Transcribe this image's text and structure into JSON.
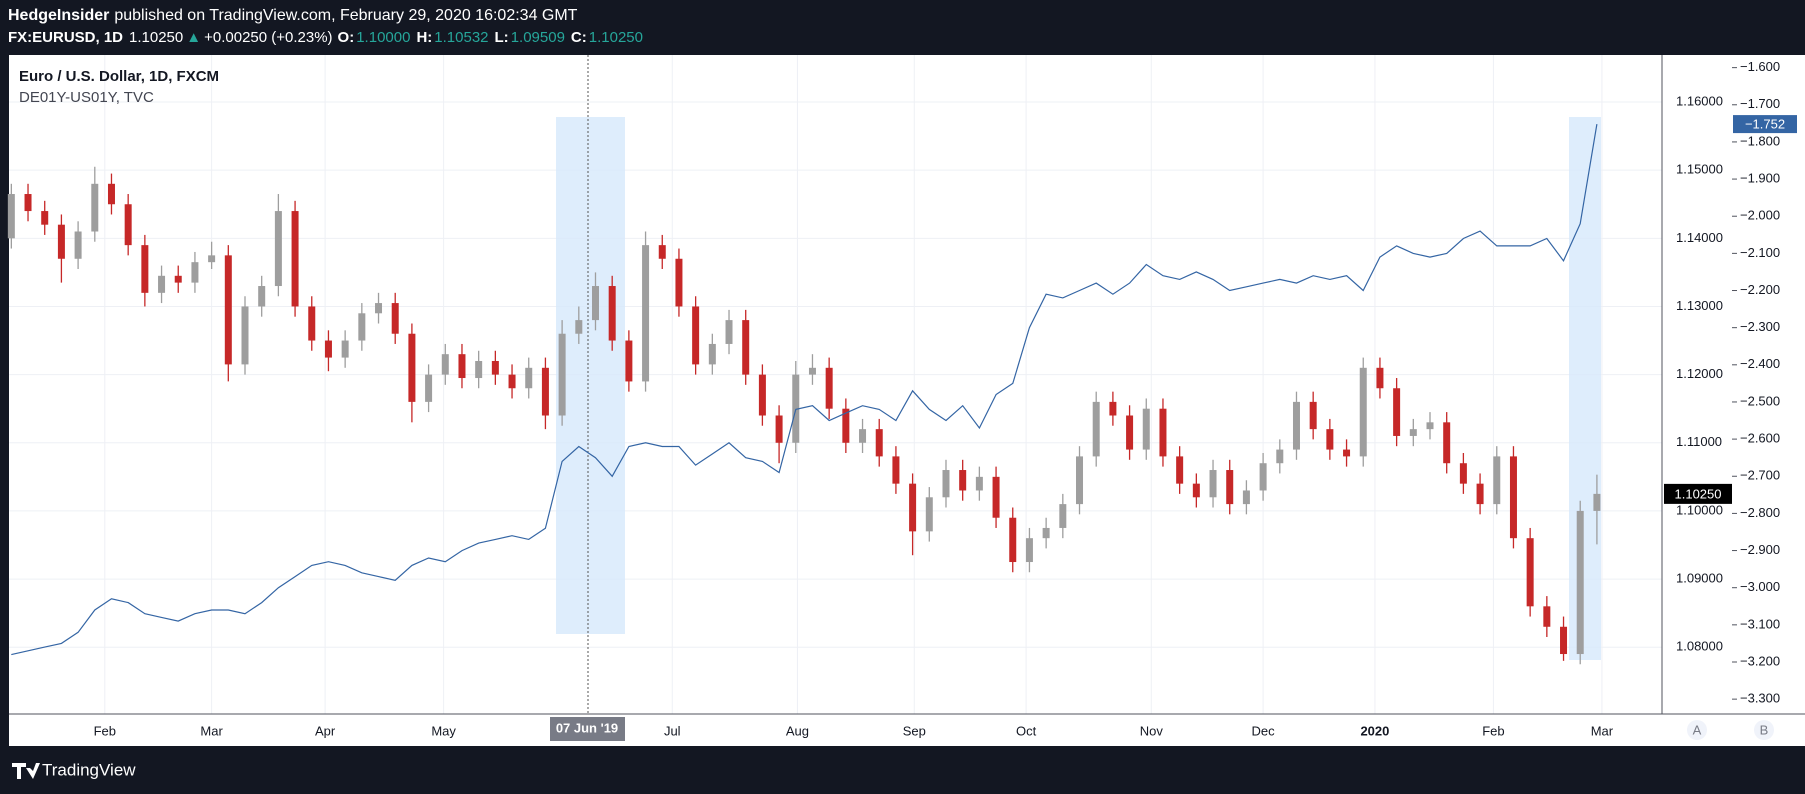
{
  "header": {
    "publisher": "HedgeInsider",
    "published": "published on TradingView.com, February 29, 2020 16:02:34 GMT",
    "symbol": "FX:EURUSD, 1D",
    "last": "1.10250",
    "arrow": "▲",
    "change": "+0.00250 (+0.23%)",
    "o_label": "O:",
    "o": "1.10000",
    "h_label": "H:",
    "h": "1.10532",
    "l_label": "L:",
    "l": "1.09509",
    "c_label": "C:",
    "c": "1.10250"
  },
  "footer": {
    "brand": "TradingView"
  },
  "controls": [
    "A",
    "B"
  ],
  "chart_data": {
    "type": "candlestick",
    "crosshair_label": "07 Jun '19",
    "xlim": [
      -0.14,
      98.9
    ],
    "xticks": [
      {
        "value": 5.6,
        "label": "Feb"
      },
      {
        "value": 12.0,
        "label": "Mar"
      },
      {
        "value": 18.8,
        "label": "Apr"
      },
      {
        "value": 25.9,
        "label": "May"
      },
      {
        "value": 39.6,
        "label": "Jul"
      },
      {
        "value": 47.1,
        "label": "Aug"
      },
      {
        "value": 54.1,
        "label": "Sep"
      },
      {
        "value": 60.8,
        "label": "Oct"
      },
      {
        "value": 68.3,
        "label": "Nov"
      },
      {
        "value": 75.0,
        "label": "Dec"
      },
      {
        "value": 81.7,
        "label": "2020"
      },
      {
        "value": 88.8,
        "label": "Feb"
      },
      {
        "value": 95.3,
        "label": "Mar"
      }
    ],
    "ylim": [
      1.0702,
      1.1669
    ],
    "yticks": [
      {
        "value": 1.16,
        "label": "1.16000"
      },
      {
        "value": 1.15,
        "label": "1.15000"
      },
      {
        "value": 1.14,
        "label": "1.14000"
      },
      {
        "value": 1.13,
        "label": "1.13000"
      },
      {
        "value": 1.12,
        "label": "1.12000"
      },
      {
        "value": 1.11,
        "label": "1.11000"
      },
      {
        "value": 1.1,
        "label": "1.10000"
      },
      {
        "value": 1.09,
        "label": "1.09000"
      },
      {
        "value": 1.08,
        "label": "1.08000"
      }
    ],
    "y2lim": [
      -3.34,
      -1.566
    ],
    "y2ticks": [
      {
        "value": -1.6,
        "label": "−1.600"
      },
      {
        "value": -1.7,
        "label": "−1.700"
      },
      {
        "value": -1.8,
        "label": "−1.800"
      },
      {
        "value": -1.9,
        "label": "−1.900"
      },
      {
        "value": -2.0,
        "label": "−2.000"
      },
      {
        "value": -2.1,
        "label": "−2.100"
      },
      {
        "value": -2.2,
        "label": "−2.200"
      },
      {
        "value": -2.3,
        "label": "−2.300"
      },
      {
        "value": -2.4,
        "label": "−2.400"
      },
      {
        "value": -2.5,
        "label": "−2.500"
      },
      {
        "value": -2.6,
        "label": "−2.600"
      },
      {
        "value": -2.7,
        "label": "−2.700"
      },
      {
        "value": -2.8,
        "label": "−2.800"
      },
      {
        "value": -2.9,
        "label": "−2.900"
      },
      {
        "value": -3.0,
        "label": "−3.000"
      },
      {
        "value": -3.1,
        "label": "−3.100"
      },
      {
        "value": -3.2,
        "label": "−3.200"
      },
      {
        "value": -3.3,
        "label": "−3.300"
      }
    ],
    "grid": true,
    "series": [
      {
        "name": "Euro / U.S. Dollar, 1D, FXCM",
        "up_color": "#9e9e9e",
        "down_color": "#c62828",
        "last_label": "1.10250",
        "ohlc": [
          [
            1.14,
            1.148,
            1.1385,
            1.1465
          ],
          [
            1.1465,
            1.148,
            1.1425,
            1.144
          ],
          [
            1.144,
            1.1455,
            1.1405,
            1.142
          ],
          [
            1.142,
            1.1435,
            1.1335,
            1.137
          ],
          [
            1.137,
            1.1425,
            1.1355,
            1.141
          ],
          [
            1.141,
            1.1505,
            1.1395,
            1.148
          ],
          [
            1.148,
            1.1495,
            1.1435,
            1.145
          ],
          [
            1.145,
            1.1465,
            1.1375,
            1.139
          ],
          [
            1.139,
            1.1405,
            1.13,
            1.132
          ],
          [
            1.132,
            1.136,
            1.1305,
            1.1345
          ],
          [
            1.1345,
            1.136,
            1.132,
            1.1335
          ],
          [
            1.1335,
            1.138,
            1.132,
            1.1365
          ],
          [
            1.1365,
            1.1395,
            1.1355,
            1.1375
          ],
          [
            1.1375,
            1.139,
            1.119,
            1.1215
          ],
          [
            1.1215,
            1.1315,
            1.12,
            1.13
          ],
          [
            1.13,
            1.1345,
            1.1285,
            1.133
          ],
          [
            1.133,
            1.1465,
            1.1315,
            1.144
          ],
          [
            1.144,
            1.1455,
            1.1285,
            1.13
          ],
          [
            1.13,
            1.1315,
            1.1235,
            1.125
          ],
          [
            1.125,
            1.1265,
            1.1205,
            1.1225
          ],
          [
            1.1225,
            1.1265,
            1.121,
            1.125
          ],
          [
            1.125,
            1.1305,
            1.1235,
            1.129
          ],
          [
            1.129,
            1.132,
            1.1275,
            1.1305
          ],
          [
            1.1305,
            1.132,
            1.1245,
            1.126
          ],
          [
            1.126,
            1.1275,
            1.113,
            1.116
          ],
          [
            1.116,
            1.1215,
            1.1145,
            1.12
          ],
          [
            1.12,
            1.1245,
            1.1185,
            1.123
          ],
          [
            1.123,
            1.1245,
            1.118,
            1.1195
          ],
          [
            1.1195,
            1.1235,
            1.118,
            1.122
          ],
          [
            1.122,
            1.1235,
            1.1185,
            1.12
          ],
          [
            1.12,
            1.1215,
            1.1165,
            1.118
          ],
          [
            1.118,
            1.1225,
            1.1165,
            1.121
          ],
          [
            1.121,
            1.1225,
            1.112,
            1.114
          ],
          [
            1.114,
            1.128,
            1.1125,
            1.126
          ],
          [
            1.126,
            1.13,
            1.1245,
            1.128
          ],
          [
            1.128,
            1.135,
            1.1265,
            1.133
          ],
          [
            1.133,
            1.1345,
            1.1235,
            1.125
          ],
          [
            1.125,
            1.1265,
            1.1175,
            1.119
          ],
          [
            1.119,
            1.141,
            1.1175,
            1.139
          ],
          [
            1.139,
            1.1405,
            1.1355,
            1.137
          ],
          [
            1.137,
            1.1385,
            1.1285,
            1.13
          ],
          [
            1.13,
            1.1315,
            1.12,
            1.1215
          ],
          [
            1.1215,
            1.126,
            1.12,
            1.1245
          ],
          [
            1.1245,
            1.1295,
            1.123,
            1.128
          ],
          [
            1.128,
            1.1295,
            1.1185,
            1.12
          ],
          [
            1.12,
            1.1215,
            1.1125,
            1.114
          ],
          [
            1.114,
            1.1155,
            1.107,
            1.11
          ],
          [
            1.11,
            1.122,
            1.1085,
            1.12
          ],
          [
            1.12,
            1.123,
            1.1185,
            1.121
          ],
          [
            1.121,
            1.1225,
            1.1135,
            1.115
          ],
          [
            1.115,
            1.1165,
            1.1085,
            1.11
          ],
          [
            1.11,
            1.1135,
            1.1085,
            1.112
          ],
          [
            1.112,
            1.1135,
            1.1065,
            1.108
          ],
          [
            1.108,
            1.1095,
            1.1025,
            1.104
          ],
          [
            1.104,
            1.1055,
            1.0935,
            1.097
          ],
          [
            1.097,
            1.1035,
            1.0955,
            1.102
          ],
          [
            1.102,
            1.1075,
            1.1005,
            1.106
          ],
          [
            1.106,
            1.1075,
            1.1015,
            1.103
          ],
          [
            1.103,
            1.1065,
            1.1015,
            1.105
          ],
          [
            1.105,
            1.1065,
            1.0975,
            1.099
          ],
          [
            1.099,
            1.1005,
            1.091,
            1.0925
          ],
          [
            1.0925,
            1.0975,
            1.091,
            1.096
          ],
          [
            1.096,
            1.099,
            1.0945,
            1.0975
          ],
          [
            1.0975,
            1.1025,
            1.096,
            1.101
          ],
          [
            1.101,
            1.1095,
            1.0995,
            1.108
          ],
          [
            1.108,
            1.1175,
            1.1065,
            1.116
          ],
          [
            1.116,
            1.1175,
            1.1125,
            1.114
          ],
          [
            1.114,
            1.1155,
            1.1075,
            1.109
          ],
          [
            1.109,
            1.1165,
            1.1075,
            1.115
          ],
          [
            1.115,
            1.1165,
            1.1065,
            1.108
          ],
          [
            1.108,
            1.1095,
            1.1025,
            1.104
          ],
          [
            1.104,
            1.1055,
            1.1005,
            1.102
          ],
          [
            1.102,
            1.1075,
            1.1005,
            1.106
          ],
          [
            1.106,
            1.1075,
            1.0995,
            1.101
          ],
          [
            1.101,
            1.1045,
            1.0995,
            1.103
          ],
          [
            1.103,
            1.1085,
            1.1015,
            1.107
          ],
          [
            1.107,
            1.1105,
            1.1055,
            1.109
          ],
          [
            1.109,
            1.1175,
            1.1075,
            1.116
          ],
          [
            1.116,
            1.1175,
            1.1105,
            1.112
          ],
          [
            1.112,
            1.1135,
            1.1075,
            1.109
          ],
          [
            1.109,
            1.1105,
            1.1065,
            1.108
          ],
          [
            1.108,
            1.1225,
            1.1065,
            1.121
          ],
          [
            1.121,
            1.1225,
            1.1165,
            1.118
          ],
          [
            1.118,
            1.1195,
            1.1095,
            1.111
          ],
          [
            1.111,
            1.1135,
            1.1095,
            1.112
          ],
          [
            1.112,
            1.1145,
            1.1105,
            1.113
          ],
          [
            1.113,
            1.1145,
            1.1055,
            1.107
          ],
          [
            1.107,
            1.1085,
            1.1025,
            1.104
          ],
          [
            1.104,
            1.1055,
            1.0995,
            1.101
          ],
          [
            1.101,
            1.1095,
            1.0995,
            1.108
          ],
          [
            1.108,
            1.1095,
            1.0945,
            1.096
          ],
          [
            1.096,
            1.0975,
            1.0845,
            1.086
          ],
          [
            1.086,
            1.0875,
            1.0815,
            1.083
          ],
          [
            1.083,
            1.0845,
            1.078,
            1.079
          ],
          [
            1.079,
            1.1015,
            1.0775,
            1.1
          ],
          [
            1.1,
            1.10532,
            1.09509,
            1.1025
          ]
        ]
      },
      {
        "name": "DE01Y-US01Y, TVC",
        "type": "line",
        "axis": "y2",
        "color": "#3465a4",
        "last_label": "−1.752",
        "values": [
          -3.18,
          -3.17,
          -3.16,
          -3.15,
          -3.12,
          -3.06,
          -3.03,
          -3.04,
          -3.07,
          -3.08,
          -3.09,
          -3.07,
          -3.06,
          -3.06,
          -3.07,
          -3.04,
          -3.0,
          -2.97,
          -2.94,
          -2.93,
          -2.94,
          -2.96,
          -2.97,
          -2.98,
          -2.94,
          -2.92,
          -2.93,
          -2.9,
          -2.88,
          -2.87,
          -2.86,
          -2.87,
          -2.84,
          -2.66,
          -2.62,
          -2.65,
          -2.7,
          -2.62,
          -2.61,
          -2.62,
          -2.62,
          -2.67,
          -2.64,
          -2.61,
          -2.65,
          -2.66,
          -2.69,
          -2.52,
          -2.51,
          -2.55,
          -2.53,
          -2.51,
          -2.52,
          -2.55,
          -2.47,
          -2.52,
          -2.55,
          -2.51,
          -2.57,
          -2.48,
          -2.45,
          -2.3,
          -2.21,
          -2.22,
          -2.2,
          -2.18,
          -2.21,
          -2.18,
          -2.13,
          -2.16,
          -2.17,
          -2.15,
          -2.17,
          -2.2,
          -2.19,
          -2.18,
          -2.17,
          -2.18,
          -2.16,
          -2.17,
          -2.16,
          -2.2,
          -2.11,
          -2.08,
          -2.1,
          -2.11,
          -2.1,
          -2.06,
          -2.04,
          -2.08,
          -2.08,
          -2.08,
          -2.06,
          -2.12,
          -2.02,
          -1.752
        ]
      }
    ]
  }
}
